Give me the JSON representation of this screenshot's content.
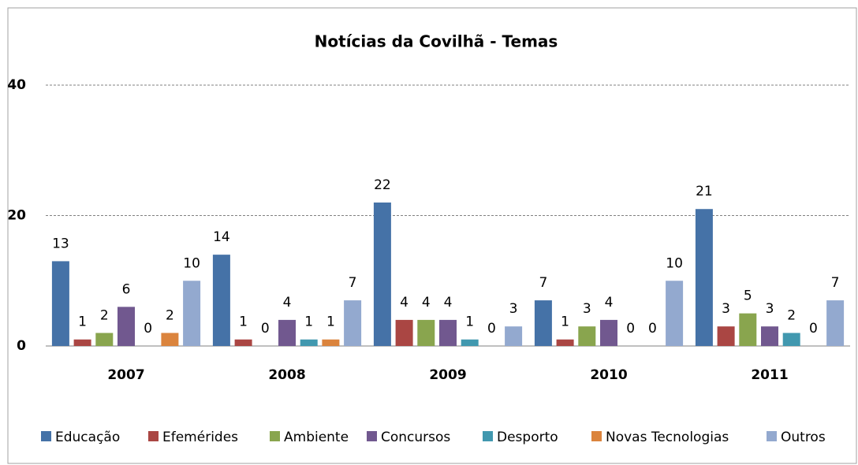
{
  "chart_data": {
    "type": "bar",
    "title": "Notícias da Covilhã - Temas",
    "categories": [
      "2007",
      "2008",
      "2009",
      "2010",
      "2011"
    ],
    "series": [
      {
        "name": "Educação",
        "color": "#4572a7",
        "values": [
          13,
          14,
          22,
          7,
          21
        ]
      },
      {
        "name": "Efemérides",
        "color": "#aa4643",
        "values": [
          1,
          1,
          4,
          1,
          3
        ]
      },
      {
        "name": "Ambiente",
        "color": "#89a54e",
        "values": [
          2,
          0,
          4,
          3,
          5
        ]
      },
      {
        "name": "Concursos",
        "color": "#71588f",
        "values": [
          6,
          4,
          4,
          4,
          3
        ]
      },
      {
        "name": "Desporto",
        "color": "#4198af",
        "values": [
          0,
          1,
          1,
          0,
          2
        ]
      },
      {
        "name": "Novas Tecnologias",
        "color": "#db843d",
        "values": [
          2,
          1,
          0,
          0,
          0
        ]
      },
      {
        "name": "Outros",
        "color": "#93a9cf",
        "values": [
          10,
          7,
          3,
          10,
          7
        ]
      }
    ],
    "ylim": [
      0,
      40
    ],
    "yticks": [
      0,
      20,
      40
    ],
    "grid": true,
    "legend": "bottom"
  }
}
